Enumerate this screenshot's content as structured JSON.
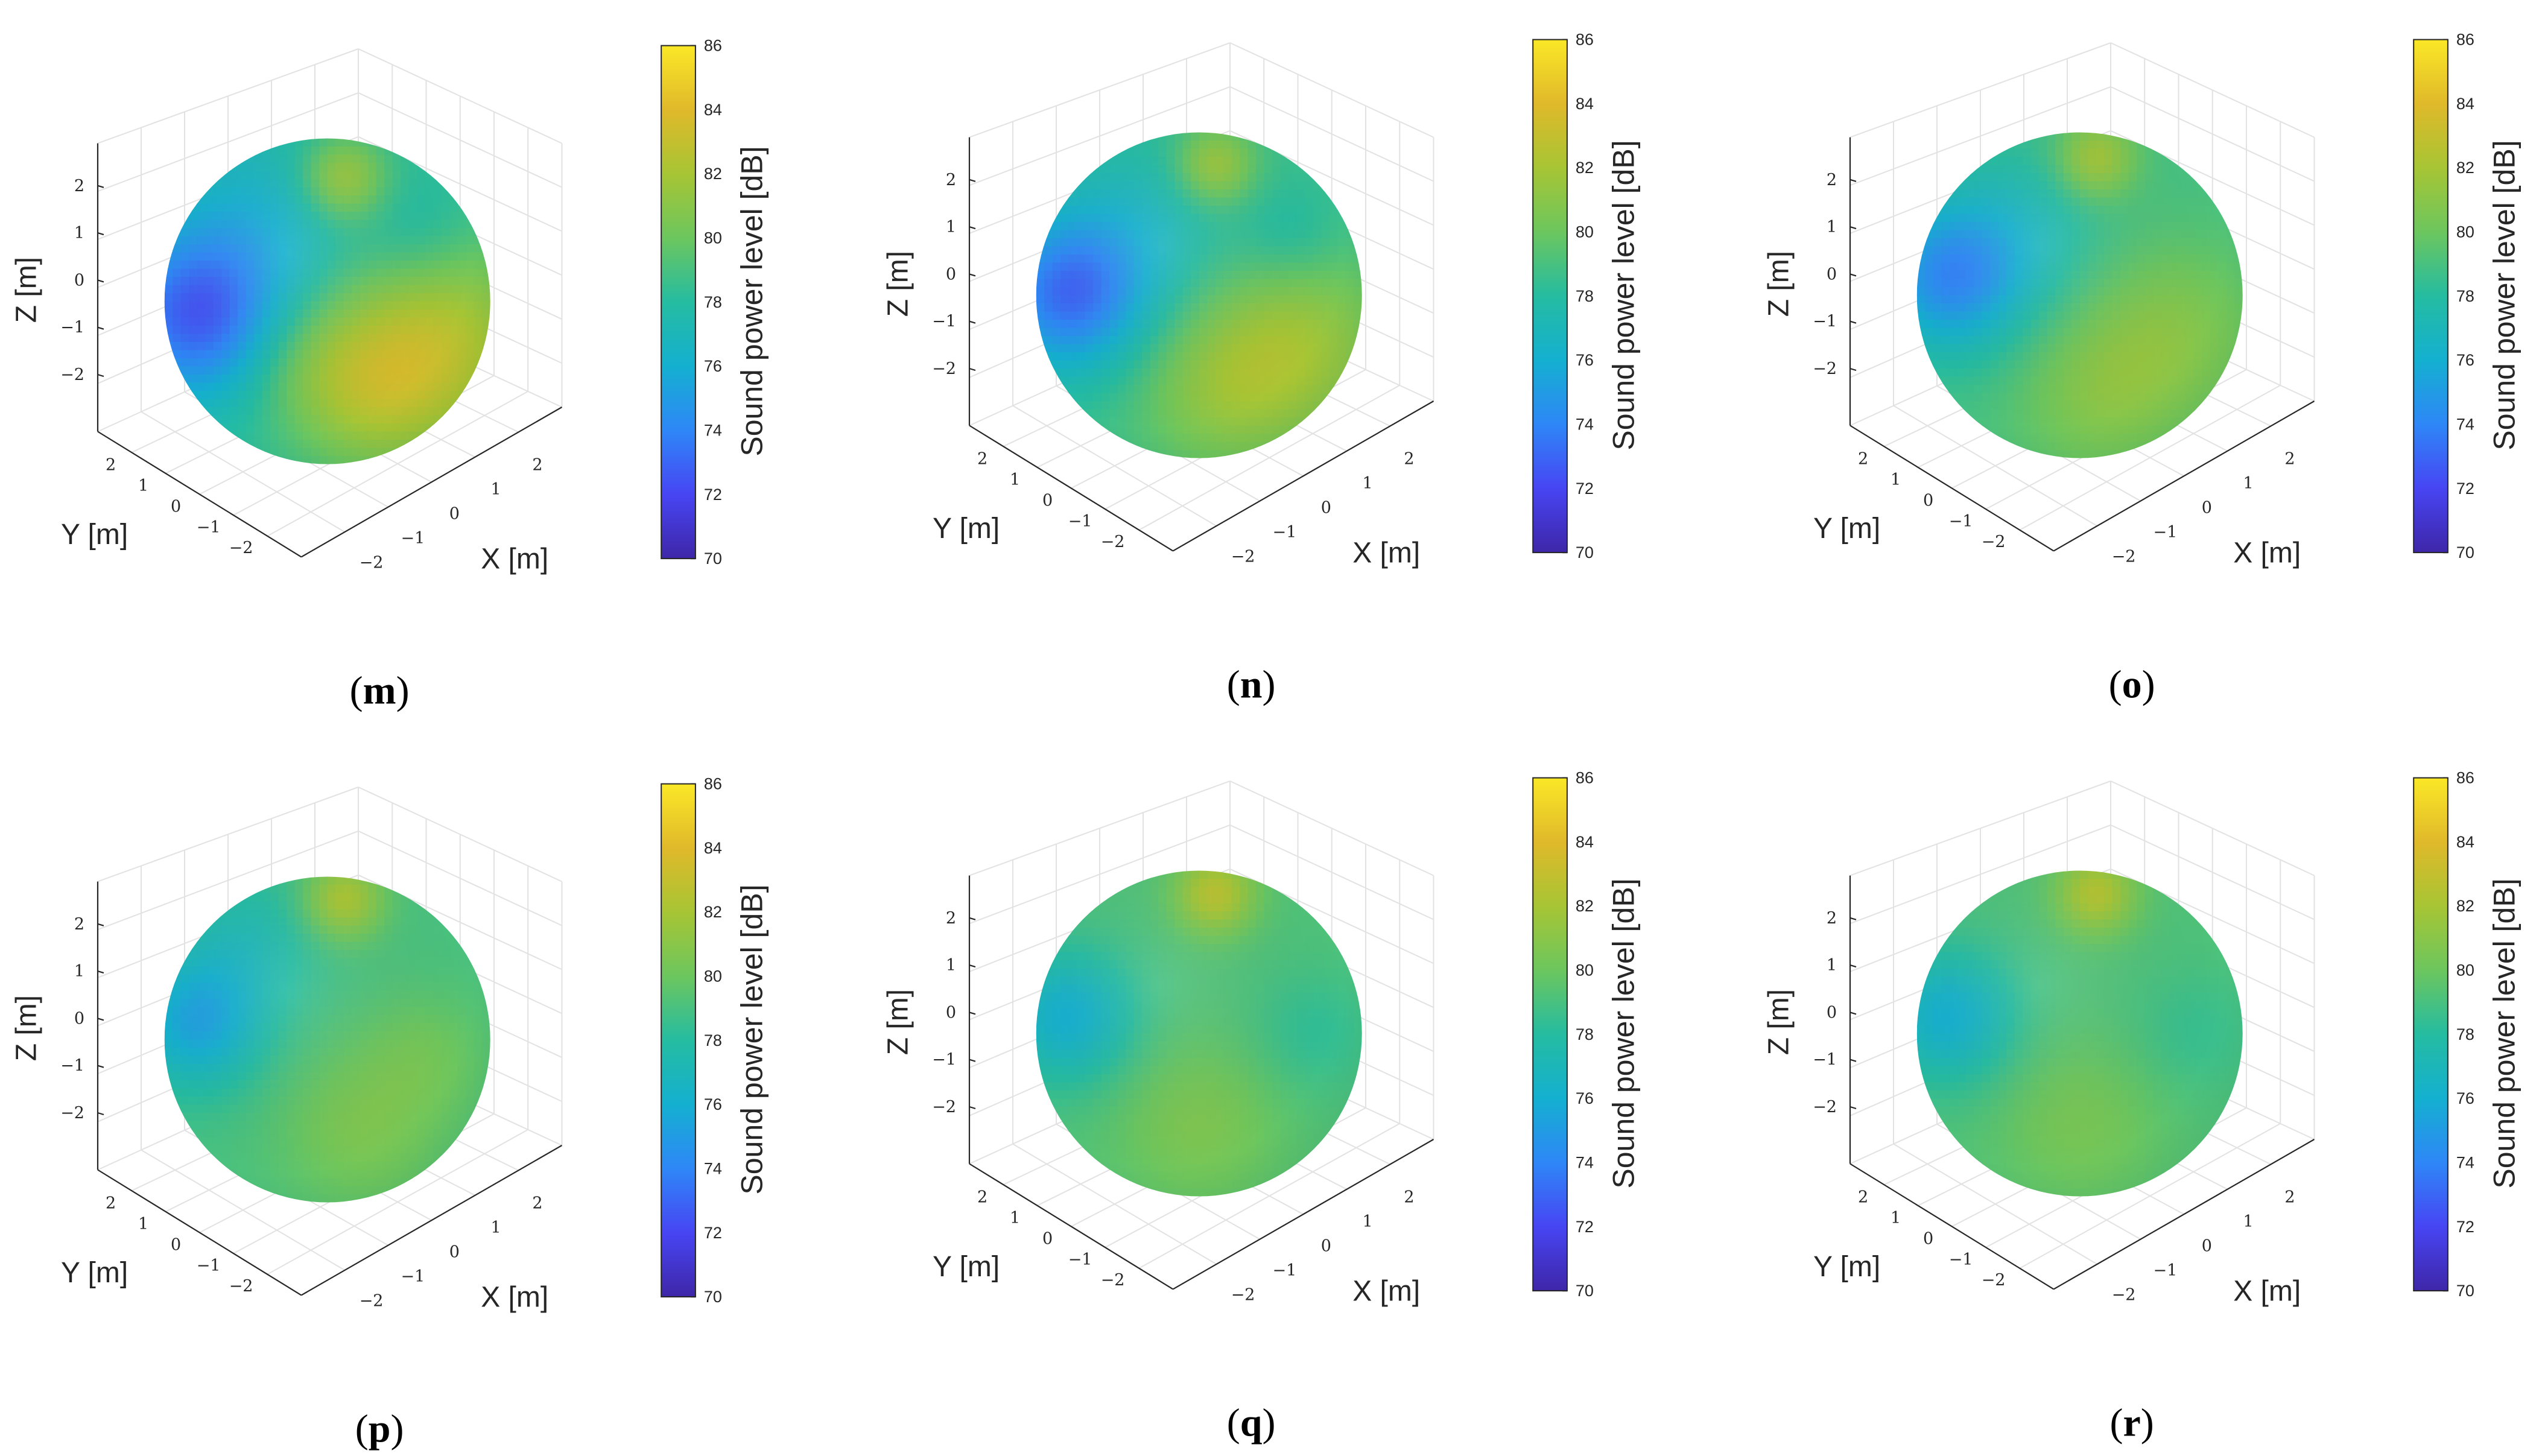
{
  "figure": {
    "colormap": [
      "#3e26a8",
      "#4745f3",
      "#2e87f7",
      "#14b0d0",
      "#25bca1",
      "#6cc65e",
      "#a7c534",
      "#e0b92a",
      "#fbe827"
    ]
  },
  "chart_data": [
    {
      "type": "heatmap",
      "subtype": "spherical surface plot",
      "panel": "m",
      "caption": [
        "(",
        "m",
        ")"
      ],
      "xlabel": "X [m]",
      "ylabel": "Y [m]",
      "zlabel": "Z [m]",
      "x_ticks": [
        "−2",
        "−1",
        "0",
        "1",
        "2"
      ],
      "y_ticks": [
        "2",
        "1",
        "0",
        "−1",
        "−2"
      ],
      "z_ticks": [
        "2",
        "1",
        "0",
        "−1",
        "−2"
      ],
      "colorbar": {
        "label": "Sound power level [dB]",
        "range": [
          70,
          86
        ],
        "ticks": [
          "86",
          "84",
          "82",
          "80",
          "78",
          "76",
          "74",
          "72",
          "70"
        ]
      },
      "surface": {
        "base_db": 78.2,
        "hotspots": [
          {
            "u": 0.55,
            "v": 0.12,
            "r": 0.13,
            "db": 81.8
          },
          {
            "u": 0.84,
            "v": 0.63,
            "r": 0.34,
            "db": 82.3
          },
          {
            "u": 0.62,
            "v": 0.78,
            "r": 0.25,
            "db": 80.6
          },
          {
            "u": 0.1,
            "v": 0.55,
            "r": 0.25,
            "db": 73.0
          },
          {
            "u": 0.28,
            "v": 0.28,
            "r": 0.3,
            "db": 76.3
          },
          {
            "u": 0.78,
            "v": 0.3,
            "r": 0.18,
            "db": 77.0
          },
          {
            "u": 0.42,
            "v": 0.68,
            "r": 0.2,
            "db": 79.3
          }
        ]
      }
    },
    {
      "type": "heatmap",
      "subtype": "spherical surface plot",
      "panel": "n",
      "caption": [
        "(",
        "n",
        ")"
      ],
      "xlabel": "X [m]",
      "ylabel": "Y [m]",
      "zlabel": "Z [m]",
      "x_ticks": [
        "−2",
        "−1",
        "0",
        "1",
        "2"
      ],
      "y_ticks": [
        "2",
        "1",
        "0",
        "−1",
        "−2"
      ],
      "z_ticks": [
        "2",
        "1",
        "0",
        "−1",
        "−2"
      ],
      "colorbar": {
        "label": "Sound power level [dB]",
        "range": [
          70,
          86
        ],
        "ticks": [
          "86",
          "84",
          "82",
          "80",
          "78",
          "76",
          "74",
          "72",
          "70"
        ]
      },
      "surface": {
        "base_db": 78.6,
        "hotspots": [
          {
            "u": 0.55,
            "v": 0.1,
            "r": 0.12,
            "db": 81.8
          },
          {
            "u": 0.8,
            "v": 0.66,
            "r": 0.3,
            "db": 81.6
          },
          {
            "u": 0.55,
            "v": 0.8,
            "r": 0.25,
            "db": 80.5
          },
          {
            "u": 0.1,
            "v": 0.5,
            "r": 0.23,
            "db": 73.5
          },
          {
            "u": 0.3,
            "v": 0.3,
            "r": 0.28,
            "db": 77.0
          },
          {
            "u": 0.78,
            "v": 0.32,
            "r": 0.16,
            "db": 77.5
          }
        ]
      }
    },
    {
      "type": "heatmap",
      "subtype": "spherical surface plot",
      "panel": "o",
      "caption": [
        "(",
        "o",
        ")"
      ],
      "xlabel": "X [m]",
      "ylabel": "Y [m]",
      "zlabel": "Z [m]",
      "x_ticks": [
        "−2",
        "−1",
        "0",
        "1",
        "2"
      ],
      "y_ticks": [
        "2",
        "1",
        "0",
        "−1",
        "−2"
      ],
      "z_ticks": [
        "2",
        "1",
        "0",
        "−1",
        "−2"
      ],
      "colorbar": {
        "label": "Sound power level [dB]",
        "range": [
          70,
          86
        ],
        "ticks": [
          "86",
          "84",
          "82",
          "80",
          "78",
          "76",
          "74",
          "72",
          "70"
        ]
      },
      "surface": {
        "base_db": 78.9,
        "hotspots": [
          {
            "u": 0.55,
            "v": 0.08,
            "r": 0.12,
            "db": 82.0
          },
          {
            "u": 0.78,
            "v": 0.62,
            "r": 0.28,
            "db": 80.8
          },
          {
            "u": 0.55,
            "v": 0.82,
            "r": 0.25,
            "db": 80.5
          },
          {
            "u": 0.1,
            "v": 0.45,
            "r": 0.22,
            "db": 74.5
          },
          {
            "u": 0.3,
            "v": 0.3,
            "r": 0.26,
            "db": 77.3
          }
        ]
      }
    },
    {
      "type": "heatmap",
      "subtype": "spherical surface plot",
      "panel": "p",
      "caption": [
        "(",
        "p",
        ")"
      ],
      "xlabel": "X [m]",
      "ylabel": "Y [m]",
      "zlabel": "Z [m]",
      "x_ticks": [
        "−2",
        "−1",
        "0",
        "1",
        "2"
      ],
      "y_ticks": [
        "2",
        "1",
        "0",
        "−1",
        "−2"
      ],
      "z_ticks": [
        "2",
        "1",
        "0",
        "−1",
        "−2"
      ],
      "colorbar": {
        "label": "Sound power level [dB]",
        "range": [
          70,
          86
        ],
        "ticks": [
          "86",
          "84",
          "82",
          "80",
          "78",
          "76",
          "74",
          "72",
          "70"
        ]
      },
      "surface": {
        "base_db": 79.0,
        "hotspots": [
          {
            "u": 0.55,
            "v": 0.07,
            "r": 0.12,
            "db": 82.2
          },
          {
            "u": 0.6,
            "v": 0.78,
            "r": 0.25,
            "db": 80.5
          },
          {
            "u": 0.8,
            "v": 0.55,
            "r": 0.2,
            "db": 80.0
          },
          {
            "u": 0.1,
            "v": 0.45,
            "r": 0.2,
            "db": 75.5
          },
          {
            "u": 0.25,
            "v": 0.2,
            "r": 0.22,
            "db": 77.5
          }
        ]
      }
    },
    {
      "type": "heatmap",
      "subtype": "spherical surface plot",
      "panel": "q",
      "caption": [
        "(",
        "q",
        ")"
      ],
      "xlabel": "X [m]",
      "ylabel": "Y [m]",
      "zlabel": "Z [m]",
      "x_ticks": [
        "−2",
        "−1",
        "0",
        "1",
        "2"
      ],
      "y_ticks": [
        "2",
        "1",
        "0",
        "−1",
        "−2"
      ],
      "z_ticks": [
        "2",
        "1",
        "0",
        "−1",
        "−2"
      ],
      "colorbar": {
        "label": "Sound power level [dB]",
        "range": [
          70,
          86
        ],
        "ticks": [
          "86",
          "84",
          "82",
          "80",
          "78",
          "76",
          "74",
          "72",
          "70"
        ]
      },
      "surface": {
        "base_db": 79.2,
        "hotspots": [
          {
            "u": 0.55,
            "v": 0.07,
            "r": 0.12,
            "db": 82.6
          },
          {
            "u": 0.5,
            "v": 0.78,
            "r": 0.25,
            "db": 80.6
          },
          {
            "u": 0.1,
            "v": 0.45,
            "r": 0.2,
            "db": 76.0
          },
          {
            "u": 0.85,
            "v": 0.5,
            "r": 0.18,
            "db": 78.3
          }
        ]
      }
    },
    {
      "type": "heatmap",
      "subtype": "spherical surface plot",
      "panel": "r",
      "caption": [
        "(",
        "r",
        ")"
      ],
      "xlabel": "X [m]",
      "ylabel": "Y [m]",
      "zlabel": "Z [m]",
      "x_ticks": [
        "−2",
        "−1",
        "0",
        "1",
        "2"
      ],
      "y_ticks": [
        "2",
        "1",
        "0",
        "−1",
        "−2"
      ],
      "z_ticks": [
        "2",
        "1",
        "0",
        "−1",
        "−2"
      ],
      "colorbar": {
        "label": "Sound power level [dB]",
        "range": [
          70,
          86
        ],
        "ticks": [
          "86",
          "84",
          "82",
          "80",
          "78",
          "76",
          "74",
          "72",
          "70"
        ]
      },
      "surface": {
        "base_db": 79.2,
        "hotspots": [
          {
            "u": 0.55,
            "v": 0.07,
            "r": 0.12,
            "db": 82.4
          },
          {
            "u": 0.5,
            "v": 0.78,
            "r": 0.25,
            "db": 80.4
          },
          {
            "u": 0.1,
            "v": 0.45,
            "r": 0.2,
            "db": 76.0
          },
          {
            "u": 0.85,
            "v": 0.5,
            "r": 0.18,
            "db": 78.5
          }
        ]
      }
    }
  ]
}
